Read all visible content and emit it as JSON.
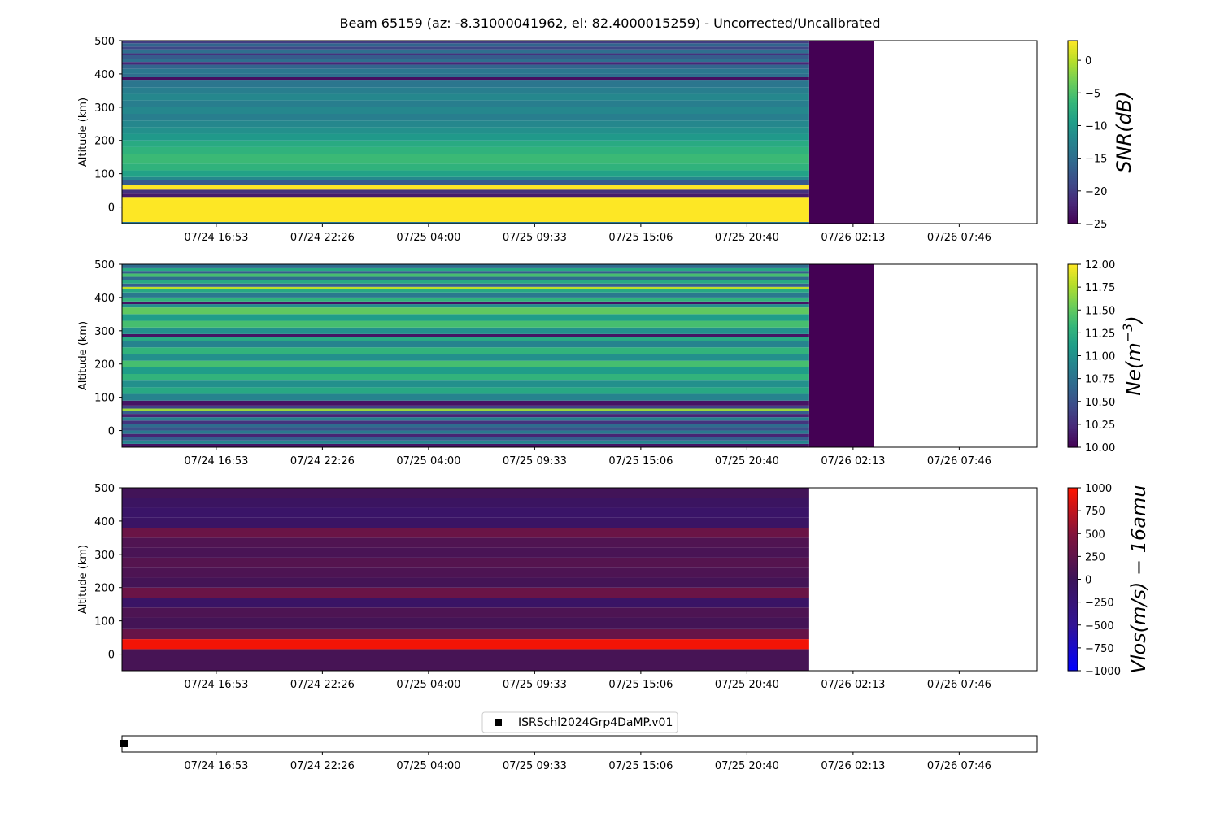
{
  "figure": {
    "title": "Beam 65159 (az: -8.31000041962, el: 82.4000015259) - Uncorrected/Uncalibrated"
  },
  "time_ticks": [
    "07/24 16:53",
    "07/24 22:26",
    "07/25 04:00",
    "07/25 09:33",
    "07/25 15:06",
    "07/25 20:40",
    "07/26 02:13",
    "07/26 07:46"
  ],
  "chart_data": [
    {
      "type": "heatmap",
      "id": "snr",
      "title": "",
      "xlabel": "",
      "ylabel": "Altitude (km)",
      "ylim": [
        -50,
        500
      ],
      "yticks": [
        0,
        100,
        200,
        300,
        400,
        500
      ],
      "x_tick_labels": [
        "07/24 16:53",
        "07/24 22:26",
        "07/25 04:00",
        "07/25 09:33",
        "07/25 15:06",
        "07/25 20:40",
        "07/26 02:13",
        "07/26 07:46"
      ],
      "colorbar": {
        "label": "SNR(dB)",
        "colormap": "viridis",
        "range": [
          -25,
          3
        ],
        "ticks": [
          -25,
          -20,
          -15,
          -10,
          -5,
          0
        ],
        "tick_labels": [
          "−25",
          "−20",
          "−15",
          "−10",
          "−5",
          "0"
        ]
      },
      "profile": [
        {
          "alt": [
            -50,
            -45
          ],
          "value": -14
        },
        {
          "alt": [
            -45,
            30
          ],
          "value": 3
        },
        {
          "alt": [
            30,
            40
          ],
          "value": -23
        },
        {
          "alt": [
            40,
            52
          ],
          "value": -21
        },
        {
          "alt": [
            52,
            65
          ],
          "value": 3
        },
        {
          "alt": [
            65,
            80
          ],
          "value": -17
        },
        {
          "alt": [
            80,
            90
          ],
          "value": -12
        },
        {
          "alt": [
            90,
            110
          ],
          "value": -9
        },
        {
          "alt": [
            110,
            130
          ],
          "value": -7
        },
        {
          "alt": [
            130,
            160
          ],
          "value": -6
        },
        {
          "alt": [
            160,
            180
          ],
          "value": -7
        },
        {
          "alt": [
            180,
            200
          ],
          "value": -8
        },
        {
          "alt": [
            200,
            220
          ],
          "value": -10
        },
        {
          "alt": [
            220,
            240
          ],
          "value": -11
        },
        {
          "alt": [
            240,
            260
          ],
          "value": -12
        },
        {
          "alt": [
            260,
            280
          ],
          "value": -13
        },
        {
          "alt": [
            280,
            300
          ],
          "value": -12
        },
        {
          "alt": [
            300,
            320
          ],
          "value": -13
        },
        {
          "alt": [
            320,
            340
          ],
          "value": -12
        },
        {
          "alt": [
            340,
            360
          ],
          "value": -13
        },
        {
          "alt": [
            360,
            380
          ],
          "value": -14
        },
        {
          "alt": [
            380,
            390
          ],
          "value": -24
        },
        {
          "alt": [
            390,
            400
          ],
          "value": -15
        },
        {
          "alt": [
            400,
            415
          ],
          "value": -14
        },
        {
          "alt": [
            415,
            428
          ],
          "value": -16
        },
        {
          "alt": [
            428,
            436
          ],
          "value": -22
        },
        {
          "alt": [
            436,
            446
          ],
          "value": -15
        },
        {
          "alt": [
            446,
            456
          ],
          "value": -17
        },
        {
          "alt": [
            456,
            462
          ],
          "value": -21
        },
        {
          "alt": [
            462,
            474
          ],
          "value": -15
        },
        {
          "alt": [
            474,
            482
          ],
          "value": -19
        },
        {
          "alt": [
            482,
            492
          ],
          "value": -16
        },
        {
          "alt": [
            492,
            500
          ],
          "value": -20
        }
      ],
      "filled_fill_color": "#440154"
    },
    {
      "type": "heatmap",
      "id": "ne",
      "title": "",
      "xlabel": "",
      "ylabel": "Altitude (km)",
      "ylim": [
        -50,
        500
      ],
      "yticks": [
        0,
        100,
        200,
        300,
        400,
        500
      ],
      "x_tick_labels": [
        "07/24 16:53",
        "07/24 22:26",
        "07/25 04:00",
        "07/25 09:33",
        "07/25 15:06",
        "07/25 20:40",
        "07/26 02:13",
        "07/26 07:46"
      ],
      "colorbar": {
        "label": "Ne(m^-3)",
        "colormap": "viridis",
        "range": [
          10.0,
          12.0
        ],
        "ticks": [
          10.0,
          10.25,
          10.5,
          10.75,
          11.0,
          11.25,
          11.5,
          11.75,
          12.0
        ],
        "tick_labels": [
          "10.00",
          "10.25",
          "10.50",
          "10.75",
          "11.00",
          "11.25",
          "11.50",
          "11.75",
          "12.00"
        ]
      },
      "profile": [
        {
          "alt": [
            -50,
            -40
          ],
          "value": 10.1
        },
        {
          "alt": [
            -40,
            -30
          ],
          "value": 10.9
        },
        {
          "alt": [
            -30,
            -20
          ],
          "value": 10.6
        },
        {
          "alt": [
            -20,
            -10
          ],
          "value": 10.2
        },
        {
          "alt": [
            -10,
            0
          ],
          "value": 10.8
        },
        {
          "alt": [
            0,
            10
          ],
          "value": 10.5
        },
        {
          "alt": [
            10,
            20
          ],
          "value": 10.7
        },
        {
          "alt": [
            20,
            30
          ],
          "value": 10.3
        },
        {
          "alt": [
            30,
            40
          ],
          "value": 10.9
        },
        {
          "alt": [
            40,
            50
          ],
          "value": 10.2
        },
        {
          "alt": [
            50,
            60
          ],
          "value": 10.6
        },
        {
          "alt": [
            60,
            66
          ],
          "value": 11.7
        },
        {
          "alt": [
            66,
            75
          ],
          "value": 10.4
        },
        {
          "alt": [
            75,
            90
          ],
          "value": 10.1
        },
        {
          "alt": [
            90,
            110
          ],
          "value": 10.9
        },
        {
          "alt": [
            110,
            130
          ],
          "value": 11.2
        },
        {
          "alt": [
            130,
            150
          ],
          "value": 11.0
        },
        {
          "alt": [
            150,
            170
          ],
          "value": 11.3
        },
        {
          "alt": [
            170,
            190
          ],
          "value": 11.1
        },
        {
          "alt": [
            190,
            210
          ],
          "value": 11.4
        },
        {
          "alt": [
            210,
            230
          ],
          "value": 11.0
        },
        {
          "alt": [
            230,
            250
          ],
          "value": 11.3
        },
        {
          "alt": [
            250,
            270
          ],
          "value": 10.9
        },
        {
          "alt": [
            270,
            282
          ],
          "value": 11.2
        },
        {
          "alt": [
            282,
            290
          ],
          "value": 10.1
        },
        {
          "alt": [
            290,
            310
          ],
          "value": 11.0
        },
        {
          "alt": [
            310,
            330
          ],
          "value": 11.4
        },
        {
          "alt": [
            330,
            350
          ],
          "value": 11.1
        },
        {
          "alt": [
            350,
            370
          ],
          "value": 11.5
        },
        {
          "alt": [
            370,
            380
          ],
          "value": 11.0
        },
        {
          "alt": [
            380,
            388
          ],
          "value": 10.1
        },
        {
          "alt": [
            388,
            400
          ],
          "value": 11.3
        },
        {
          "alt": [
            400,
            415
          ],
          "value": 10.8
        },
        {
          "alt": [
            415,
            425
          ],
          "value": 11.2
        },
        {
          "alt": [
            425,
            432
          ],
          "value": 11.8
        },
        {
          "alt": [
            432,
            442
          ],
          "value": 10.6
        },
        {
          "alt": [
            442,
            452
          ],
          "value": 11.2
        },
        {
          "alt": [
            452,
            462
          ],
          "value": 10.7
        },
        {
          "alt": [
            462,
            472
          ],
          "value": 11.4
        },
        {
          "alt": [
            472,
            480
          ],
          "value": 10.6
        },
        {
          "alt": [
            480,
            488
          ],
          "value": 11.2
        },
        {
          "alt": [
            488,
            500
          ],
          "value": 10.7
        }
      ],
      "filled_fill_color": "#440154"
    },
    {
      "type": "heatmap",
      "id": "vlos",
      "title": "",
      "xlabel": "",
      "ylabel": "Altitude (km)",
      "ylim": [
        -50,
        500
      ],
      "yticks": [
        0,
        100,
        200,
        300,
        400,
        500
      ],
      "x_tick_labels": [
        "07/24 16:53",
        "07/24 22:26",
        "07/25 04:00",
        "07/25 09:33",
        "07/25 15:06",
        "07/25 20:40",
        "07/26 02:13",
        "07/26 07:46"
      ],
      "colorbar": {
        "label": "Vlos(m/s) − 16amu",
        "colormap": "bwr_dark",
        "range": [
          -1000,
          1000
        ],
        "ticks": [
          -1000,
          -750,
          -500,
          -250,
          0,
          250,
          500,
          750,
          1000
        ],
        "tick_labels": [
          "−1000",
          "−750",
          "−500",
          "−250",
          "0",
          "250",
          "500",
          "750",
          "1000"
        ]
      },
      "profile": [
        {
          "alt": [
            -50,
            15
          ],
          "value": 80
        },
        {
          "alt": [
            15,
            45
          ],
          "value": 950
        },
        {
          "alt": [
            45,
            75
          ],
          "value": 300
        },
        {
          "alt": [
            75,
            110
          ],
          "value": 60
        },
        {
          "alt": [
            110,
            140
          ],
          "value": 120
        },
        {
          "alt": [
            140,
            170
          ],
          "value": -90
        },
        {
          "alt": [
            170,
            200
          ],
          "value": 330
        },
        {
          "alt": [
            200,
            230
          ],
          "value": 60
        },
        {
          "alt": [
            230,
            260
          ],
          "value": 120
        },
        {
          "alt": [
            260,
            290
          ],
          "value": 180
        },
        {
          "alt": [
            290,
            320
          ],
          "value": 90
        },
        {
          "alt": [
            320,
            350
          ],
          "value": 140
        },
        {
          "alt": [
            350,
            380
          ],
          "value": 330
        },
        {
          "alt": [
            380,
            410
          ],
          "value": -80
        },
        {
          "alt": [
            410,
            440
          ],
          "value": -120
        },
        {
          "alt": [
            440,
            470
          ],
          "value": -60
        },
        {
          "alt": [
            470,
            500
          ],
          "value": 40
        }
      ]
    }
  ],
  "experiment_panel": {
    "legend_label": "ISRSchl2024Grp4DaMP.v01",
    "legend_marker": "square"
  }
}
